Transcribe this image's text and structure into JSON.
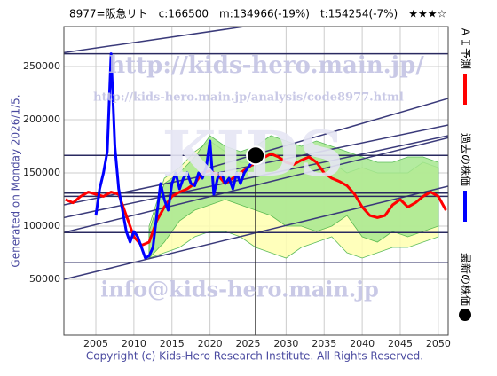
{
  "chart_data": {
    "type": "line",
    "title": "8977=阪急リト　c:166500　m:134966(-19%)　t:154254(-7%)　★★★☆",
    "generated": "Generated on Monday 2026/1/5.",
    "copyright": "Copyright (c) Kids-Hero Research Institute. All Rights Reserved.",
    "watermarks": [
      "http://kids-hero.main.jp/",
      "http://kids-hero.main.jp/analysis/code8977.html",
      "info@kids-hero.main.jp",
      "KIDS"
    ],
    "xlim": [
      2000.8,
      2051.3
    ],
    "ylim": [
      -2500,
      287500
    ],
    "xticks": [
      2005,
      2010,
      2015,
      2020,
      2025,
      2030,
      2035,
      2040,
      2045,
      2050
    ],
    "yticks": [
      50000,
      100000,
      150000,
      200000,
      250000
    ],
    "grid": true,
    "bands": [
      {
        "color": "#ffffb0",
        "x": [
          2012,
          2014,
          2016,
          2018,
          2020,
          2022,
          2024,
          2026,
          2028,
          2030,
          2032,
          2034,
          2036,
          2038,
          2040,
          2042,
          2044,
          2046,
          2048,
          2050
        ],
        "upper": [
          100000,
          145000,
          155000,
          170000,
          180000,
          170000,
          160000,
          160000,
          170000,
          165000,
          160000,
          165000,
          160000,
          150000,
          155000,
          150000,
          150000,
          150000,
          160000,
          155000
        ],
        "lower": [
          70000,
          75000,
          80000,
          90000,
          95000,
          95000,
          90000,
          80000,
          75000,
          70000,
          80000,
          85000,
          90000,
          75000,
          70000,
          75000,
          80000,
          80000,
          85000,
          90000
        ]
      },
      {
        "color": "#a8e890",
        "x": [
          2012,
          2014,
          2016,
          2018,
          2020,
          2022,
          2024,
          2026,
          2028,
          2030,
          2032,
          2034,
          2036,
          2038,
          2040,
          2042,
          2044,
          2046,
          2048,
          2050
        ],
        "upper": [
          95000,
          140000,
          150000,
          165000,
          185000,
          175000,
          170000,
          175000,
          185000,
          180000,
          175000,
          180000,
          175000,
          170000,
          165000,
          160000,
          160000,
          165000,
          165000,
          160000
        ],
        "lower": [
          70000,
          85000,
          105000,
          115000,
          120000,
          125000,
          120000,
          115000,
          110000,
          100000,
          100000,
          95000,
          100000,
          110000,
          90000,
          85000,
          95000,
          90000,
          95000,
          100000
        ]
      }
    ],
    "trend_lines": [
      {
        "x": [
          2000.8,
          2051.3
        ],
        "values": [
          50000,
          137500
        ]
      },
      {
        "x": [
          2000.8,
          2051.3
        ],
        "values": [
          94000,
          183000
        ]
      },
      {
        "x": [
          2000.8,
          2051.3
        ],
        "values": [
          108000,
          185000
        ]
      },
      {
        "x": [
          2000.8,
          2051.3
        ],
        "values": [
          120000,
          195000
        ]
      },
      {
        "x": [
          2000.8,
          2025
        ],
        "values": [
          263000,
          288000
        ]
      },
      {
        "x": [
          2020,
          2051.3
        ],
        "values": [
          155000,
          220000
        ]
      }
    ],
    "hlines": [
      262000,
      166500,
      131000,
      128000,
      94000,
      66000
    ],
    "series": [
      {
        "name": "ＡＩ予測",
        "color": "#ff0000",
        "x": [
          2001,
          2002,
          2003,
          2004,
          2005,
          2006,
          2007,
          2008,
          2009,
          2010,
          2011,
          2012,
          2013,
          2014,
          2015,
          2016,
          2017,
          2018,
          2019,
          2020,
          2021,
          2022,
          2023,
          2024,
          2025,
          2026,
          2027,
          2028,
          2029,
          2030,
          2031,
          2032,
          2033,
          2034,
          2035,
          2036,
          2037,
          2038,
          2039,
          2040,
          2041,
          2042,
          2043,
          2044,
          2045,
          2046,
          2047,
          2048,
          2049,
          2050,
          2051
        ],
        "values": [
          125000,
          122000,
          128000,
          132000,
          130000,
          128000,
          132000,
          130000,
          110000,
          90000,
          82000,
          85000,
          105000,
          118000,
          128000,
          132000,
          135000,
          140000,
          150000,
          152000,
          148000,
          140000,
          145000,
          150000,
          155000,
          160000,
          164000,
          168000,
          165000,
          160000,
          158000,
          162000,
          165000,
          160000,
          150000,
          145000,
          142000,
          138000,
          130000,
          118000,
          110000,
          108000,
          110000,
          120000,
          125000,
          118000,
          122000,
          128000,
          132000,
          128000,
          115000
        ]
      },
      {
        "name": "過去の株価",
        "color": "#0000ff",
        "x": [
          2005,
          2005.5,
          2006,
          2006.5,
          2007,
          2007.5,
          2008,
          2008.5,
          2009,
          2009.5,
          2010,
          2010.5,
          2011,
          2011.5,
          2012,
          2012.5,
          2013,
          2013.5,
          2014,
          2014.5,
          2015,
          2015.5,
          2016,
          2016.5,
          2017,
          2017.5,
          2018,
          2018.5,
          2019,
          2019.5,
          2020,
          2020.5,
          2021,
          2021.5,
          2022,
          2022.5,
          2023,
          2023.5,
          2024,
          2024.5,
          2025,
          2025.5,
          2026
        ],
        "values": [
          110000,
          135000,
          150000,
          170000,
          262000,
          175000,
          135000,
          115000,
          95000,
          85000,
          95000,
          90000,
          80000,
          70000,
          72000,
          80000,
          110000,
          140000,
          125000,
          115000,
          140000,
          150000,
          135000,
          145000,
          150000,
          140000,
          138000,
          150000,
          145000,
          155000,
          180000,
          130000,
          145000,
          150000,
          140000,
          145000,
          135000,
          150000,
          140000,
          150000,
          155000,
          160000,
          166500
        ]
      }
    ],
    "latest": {
      "name": "最新の株価",
      "x": 2026,
      "value": 166500,
      "color": "#000000"
    }
  }
}
